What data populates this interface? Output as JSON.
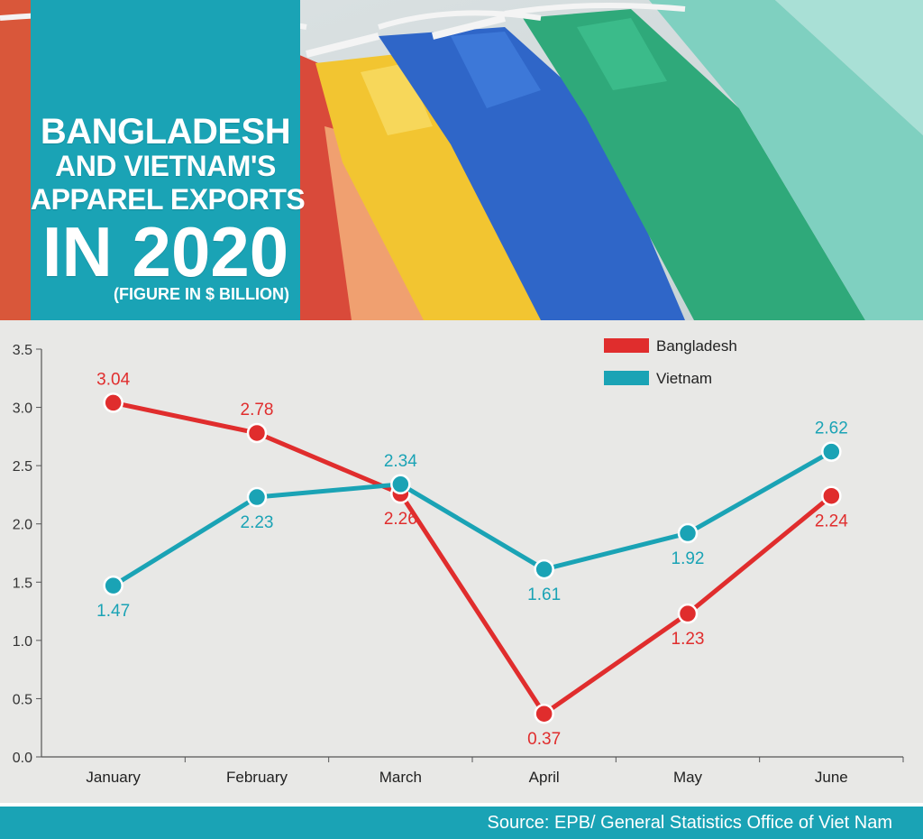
{
  "header": {
    "title_line_1": "BANGLADESH",
    "title_line_2": "AND VIETNAM'S",
    "title_line_3": "APPAREL EXPORTS",
    "title_line_4": "IN 2020",
    "subtitle": "(FIGURE IN $ BILLION)"
  },
  "footer": {
    "source": "Source: EPB/ General Statistics Office of Viet Nam"
  },
  "colors": {
    "accent": "#1aa3b5",
    "bangladesh": "#e02d2d",
    "vietnam": "#1aa3b5"
  },
  "chart_data": {
    "type": "line",
    "categories": [
      "January",
      "February",
      "March",
      "April",
      "May",
      "June"
    ],
    "series": [
      {
        "name": "Bangladesh",
        "values": [
          3.04,
          2.78,
          2.26,
          0.37,
          1.23,
          2.24
        ],
        "labels": [
          "3.04",
          "2.78",
          "2.26",
          "0.37",
          "1.23",
          "2.24"
        ]
      },
      {
        "name": "Vietnam",
        "values": [
          1.47,
          2.23,
          2.34,
          1.61,
          1.92,
          2.62
        ],
        "labels": [
          "1.47",
          "2.23",
          "2.34",
          "1.61",
          "1.92",
          "2.62"
        ]
      }
    ],
    "yticks": [
      "0.0",
      "0.5",
      "1.0",
      "1.5",
      "2.0",
      "2.5",
      "3.0",
      "3.5"
    ],
    "ylim": [
      0,
      3.5
    ],
    "grid": false,
    "legend": "top-right"
  }
}
